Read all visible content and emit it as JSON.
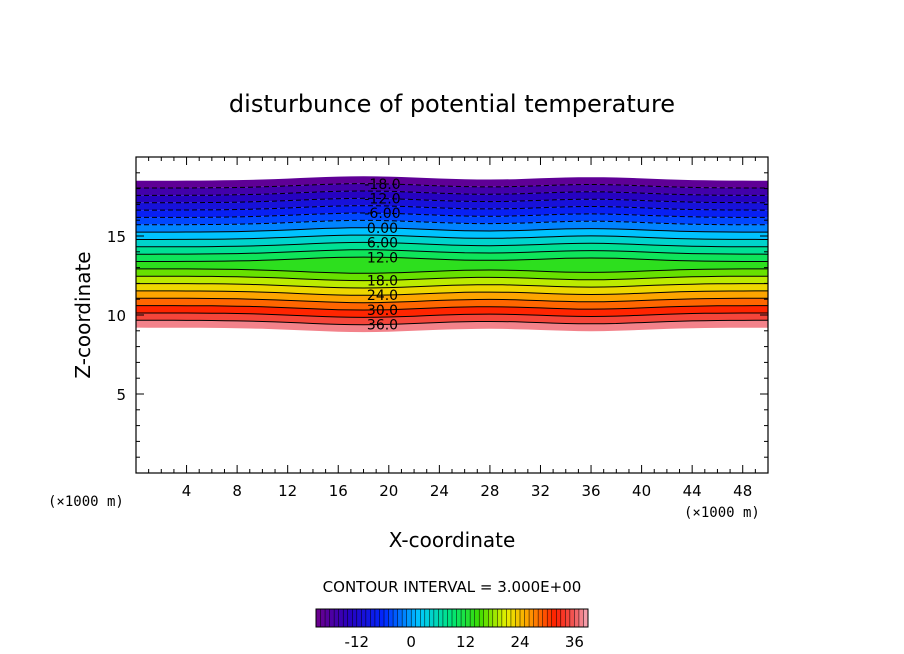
{
  "chart_data": {
    "type": "heatmap",
    "subtype": "filled-contour",
    "title": "disturbunce of potential temperature",
    "xlabel": "X-coordinate",
    "ylabel": "Z-coordinate",
    "x_unit": "(×1000 m)",
    "z_unit": "(×1000 m)",
    "xlim": [
      0,
      50
    ],
    "ylim": [
      0,
      20
    ],
    "x_ticks": [
      "4",
      "8",
      "12",
      "16",
      "20",
      "24",
      "28",
      "32",
      "36",
      "40",
      "44",
      "48"
    ],
    "y_ticks": [
      "5",
      "10",
      "15"
    ],
    "contour_interval_label": "CONTOUR INTERVAL = 3.000E+00",
    "contour_interval": 3.0,
    "value_range": [
      -21,
      39
    ],
    "negative_contours": "dashed",
    "contour_labels": [
      "-18.0",
      "-12.0",
      "-6.00",
      "0.00",
      "6.00",
      "12.0",
      "18.0",
      "24.0",
      "30.0",
      "36.0"
    ],
    "colorbar_ticks": [
      "-12",
      "0",
      "12",
      "24",
      "36"
    ],
    "colormap": "rainbow (purple → blue → cyan → green → yellow → orange → red → pink)",
    "field_extent_z": [
      9.2,
      18.5
    ],
    "colorbar": {
      "min": -21,
      "max": 39
    }
  }
}
